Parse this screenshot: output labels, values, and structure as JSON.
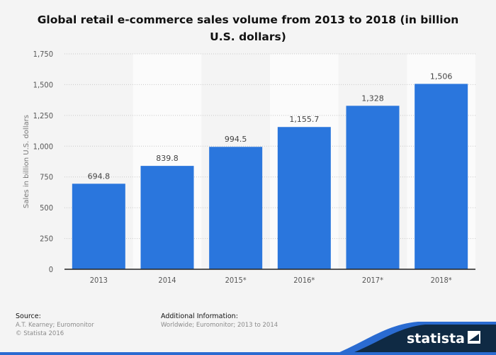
{
  "title": "Global retail e-commerce sales volume from 2013 to 2018 (in billion U.S. dollars)",
  "colors": {
    "bar": "#2a76dd",
    "background": "#f4f4f4",
    "band": "#fbfbfb",
    "grid": "#c8c8c8",
    "brand": "#0f2a44"
  },
  "chart_data": {
    "type": "bar",
    "title": "Global retail e-commerce sales volume from 2013 to 2018 (in billion U.S. dollars)",
    "categories": [
      "2013",
      "2014",
      "2015*",
      "2016*",
      "2017*",
      "2018*"
    ],
    "values": [
      694.8,
      839.8,
      994.5,
      1155.7,
      1328,
      1506
    ],
    "value_labels": [
      "694.8",
      "839.8",
      "994.5",
      "1,155.7",
      "1,328",
      "1,506"
    ],
    "ylabel": "Sales in billion U.S. dollars",
    "xlabel": "",
    "ylim": [
      0,
      1750
    ],
    "yticks": [
      0,
      250,
      500,
      750,
      1000,
      1250,
      1500,
      1750
    ],
    "ytick_labels": [
      "0",
      "250",
      "500",
      "750",
      "1,000",
      "1,250",
      "1,500",
      "1,750"
    ],
    "grid": true
  },
  "footer": {
    "source_heading": "Source:",
    "source_line1": "A.T. Kearney; Euromonitor",
    "source_line2": "© Statista 2016",
    "info_heading": "Additional Information:",
    "info_line1": "Worldwide; Euromonitor; 2013 to 2014"
  },
  "brand": {
    "name": "statista",
    "icon": "statista-logo-icon"
  }
}
